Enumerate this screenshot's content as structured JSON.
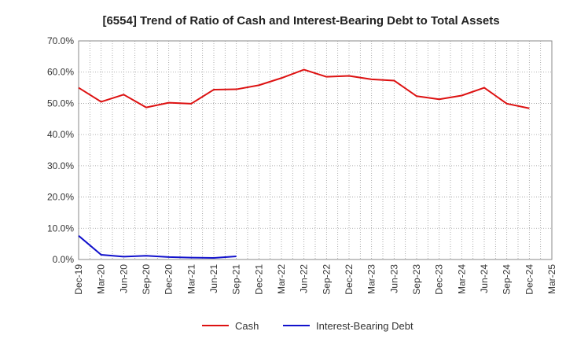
{
  "chart_data": {
    "type": "line",
    "title": "[6554]  Trend of Ratio of Cash and Interest-Bearing Debt to Total Assets",
    "xlabel": "",
    "ylabel": "",
    "ylim": [
      0,
      70
    ],
    "yticks": [
      "0.0%",
      "10.0%",
      "20.0%",
      "30.0%",
      "40.0%",
      "50.0%",
      "60.0%",
      "70.0%"
    ],
    "categories": [
      "Dec-19",
      "Mar-20",
      "Jun-20",
      "Sep-20",
      "Dec-20",
      "Mar-21",
      "Jun-21",
      "Sep-21",
      "Dec-21",
      "Mar-22",
      "Jun-22",
      "Sep-22",
      "Dec-22",
      "Mar-23",
      "Jun-23",
      "Sep-23",
      "Dec-23",
      "Mar-24",
      "Jun-24",
      "Sep-24",
      "Dec-24",
      "Mar-25"
    ],
    "grid": true,
    "legend_position": "bottom",
    "series": [
      {
        "name": "Cash",
        "color": "#dd1111",
        "values": [
          55.0,
          50.5,
          52.8,
          48.7,
          50.2,
          49.9,
          54.4,
          54.5,
          55.8,
          58.1,
          60.8,
          58.5,
          58.8,
          57.7,
          57.3,
          52.3,
          51.3,
          52.5,
          55.0,
          49.9,
          48.4,
          null
        ]
      },
      {
        "name": "Interest-Bearing Debt",
        "color": "#1111cc",
        "values": [
          7.6,
          1.5,
          0.9,
          1.2,
          0.8,
          0.6,
          0.5,
          1.0,
          null,
          null,
          null,
          null,
          null,
          null,
          null,
          null,
          null,
          null,
          null,
          null,
          null,
          null
        ]
      }
    ]
  }
}
